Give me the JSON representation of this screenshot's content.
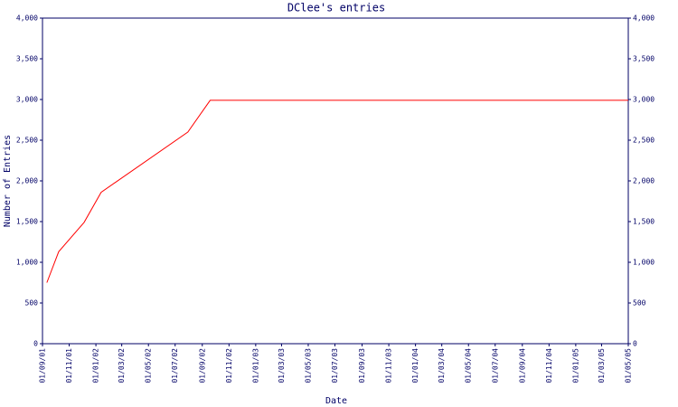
{
  "chart_data": {
    "type": "line",
    "title": "DClee's entries",
    "x_label": "Date",
    "y_label": "Number of Entries",
    "x": [
      "2001-09-11",
      "2001-10-08",
      "2001-12-05",
      "2002-01-13",
      "2002-07-30",
      "2002-09-19",
      "2005-05-01"
    ],
    "series": [
      {
        "name": "entries",
        "color": "#ff0000",
        "values": [
          750,
          1130,
          1490,
          1860,
          2600,
          2990,
          2990
        ]
      }
    ],
    "xlim": [
      "2001-09-01",
      "2005-05-01"
    ],
    "xticks": [
      {
        "value": "2001-09-01",
        "label": "01/09/01"
      },
      {
        "value": "2001-11-01",
        "label": "01/11/01"
      },
      {
        "value": "2002-01-01",
        "label": "01/01/02"
      },
      {
        "value": "2002-03-01",
        "label": "01/03/02"
      },
      {
        "value": "2002-05-01",
        "label": "01/05/02"
      },
      {
        "value": "2002-07-01",
        "label": "01/07/02"
      },
      {
        "value": "2002-09-01",
        "label": "01/09/02"
      },
      {
        "value": "2002-11-01",
        "label": "01/11/02"
      },
      {
        "value": "2003-01-01",
        "label": "01/01/03"
      },
      {
        "value": "2003-03-01",
        "label": "01/03/03"
      },
      {
        "value": "2003-05-01",
        "label": "01/05/03"
      },
      {
        "value": "2003-07-01",
        "label": "01/07/03"
      },
      {
        "value": "2003-09-01",
        "label": "01/09/03"
      },
      {
        "value": "2003-11-01",
        "label": "01/11/03"
      },
      {
        "value": "2004-01-01",
        "label": "01/01/04"
      },
      {
        "value": "2004-03-01",
        "label": "01/03/04"
      },
      {
        "value": "2004-05-01",
        "label": "01/05/04"
      },
      {
        "value": "2004-07-01",
        "label": "01/07/04"
      },
      {
        "value": "2004-09-01",
        "label": "01/09/04"
      },
      {
        "value": "2004-11-01",
        "label": "01/11/04"
      },
      {
        "value": "2005-01-01",
        "label": "01/01/05"
      },
      {
        "value": "2005-03-01",
        "label": "01/03/05"
      },
      {
        "value": "2005-05-01",
        "label": "01/05/05"
      }
    ],
    "ylim": [
      0,
      4000
    ],
    "yticks": [
      0,
      500,
      {
        "value": 1000,
        "label": "1,000"
      },
      {
        "value": 1500,
        "label": "1,500"
      },
      {
        "value": 2000,
        "label": "2,000"
      },
      {
        "value": 2500,
        "label": "2,500"
      },
      {
        "value": 3000,
        "label": "3,000"
      },
      {
        "value": 3500,
        "label": "3,500"
      },
      {
        "value": 4000,
        "label": "4,000"
      }
    ],
    "axis_color": "#000066",
    "right_axis": true
  }
}
